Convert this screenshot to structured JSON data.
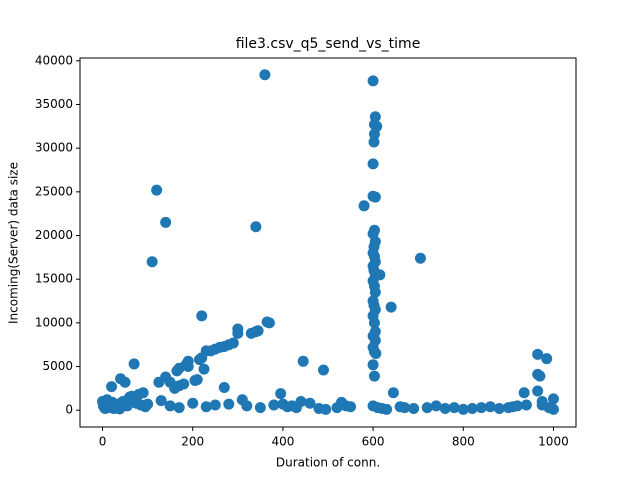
{
  "chart_data": {
    "type": "scatter",
    "title": "file3.csv_q5_send_vs_time",
    "x_label": "Duration of conn.",
    "y_label": "Incoming(Server) data size",
    "color": "#1f77b4",
    "x": [
      120,
      140,
      110,
      340,
      360,
      220,
      365,
      370,
      300,
      300,
      340,
      345,
      330,
      290,
      280,
      270,
      260,
      250,
      240,
      230,
      215,
      220,
      190,
      185,
      190,
      170,
      165,
      140,
      125,
      180,
      170,
      150,
      160,
      205,
      210,
      225,
      70,
      40,
      50,
      20,
      270,
      445,
      490,
      440,
      395,
      580,
      600,
      605,
      603,
      608,
      603,
      602,
      600,
      600,
      605,
      603,
      600,
      605,
      602,
      600,
      603,
      605,
      600,
      602,
      605,
      615,
      600,
      603,
      605,
      600,
      602,
      605,
      640,
      600,
      603,
      605,
      600,
      605,
      600,
      603,
      606,
      600,
      603,
      705,
      645,
      965,
      985,
      965,
      970,
      935,
      965,
      975,
      975,
      1000,
      1000,
      530,
      540,
      0,
      2,
      4,
      5,
      6,
      8,
      10,
      12,
      15,
      18,
      20,
      22,
      25,
      28,
      30,
      33,
      35,
      38,
      45,
      55,
      60,
      65,
      75,
      80,
      85,
      90,
      95,
      100,
      130,
      150,
      170,
      200,
      230,
      250,
      280,
      310,
      320,
      350,
      380,
      400,
      410,
      420,
      430,
      460,
      480,
      495,
      520,
      550,
      600,
      610,
      620,
      630,
      660,
      670,
      690,
      720,
      740,
      760,
      780,
      800,
      820,
      840,
      860,
      880,
      900,
      910,
      920,
      940,
      990
    ],
    "values": [
      25200,
      21500,
      17000,
      21000,
      38400,
      10800,
      10100,
      10000,
      9300,
      8800,
      9000,
      9100,
      8800,
      7700,
      7500,
      7300,
      7200,
      7000,
      6800,
      6800,
      5800,
      6000,
      5600,
      5200,
      5000,
      4800,
      4500,
      3800,
      3200,
      3000,
      2800,
      3200,
      2500,
      3400,
      3500,
      4700,
      5300,
      3600,
      3200,
      2700,
      2600,
      5600,
      4600,
      1000,
      1900,
      23400,
      37700,
      33600,
      32700,
      32500,
      31600,
      30700,
      28200,
      24500,
      24400,
      20600,
      20200,
      19300,
      18700,
      18000,
      17600,
      17000,
      16500,
      16000,
      15500,
      15500,
      14800,
      14200,
      13500,
      12500,
      12000,
      11500,
      11800,
      10800,
      10000,
      9000,
      8500,
      8000,
      7200,
      6700,
      6500,
      5200,
      3900,
      17400,
      2000,
      6400,
      5900,
      4100,
      3900,
      2000,
      2200,
      1000,
      600,
      1300,
      100,
      900,
      500,
      1000,
      500,
      300,
      800,
      200,
      600,
      1200,
      400,
      700,
      300,
      500,
      900,
      200,
      600,
      400,
      300,
      700,
      150,
      1000,
      500,
      1500,
      1600,
      800,
      1800,
      600,
      2000,
      400,
      700,
      1100,
      500,
      300,
      800,
      400,
      600,
      700,
      1200,
      500,
      300,
      600,
      700,
      400,
      500,
      300,
      800,
      200,
      100,
      300,
      400,
      500,
      300,
      200,
      100,
      400,
      300,
      200,
      300,
      500,
      200,
      300,
      100,
      200,
      300,
      400,
      200,
      300,
      400,
      500,
      600,
      300
    ],
    "xlim": [
      -50,
      1050
    ],
    "ylim": [
      -1920,
      40320
    ],
    "xticks": [
      0,
      200,
      400,
      600,
      800,
      1000
    ],
    "yticks": [
      0,
      5000,
      10000,
      15000,
      20000,
      25000,
      30000,
      35000,
      40000
    ]
  }
}
